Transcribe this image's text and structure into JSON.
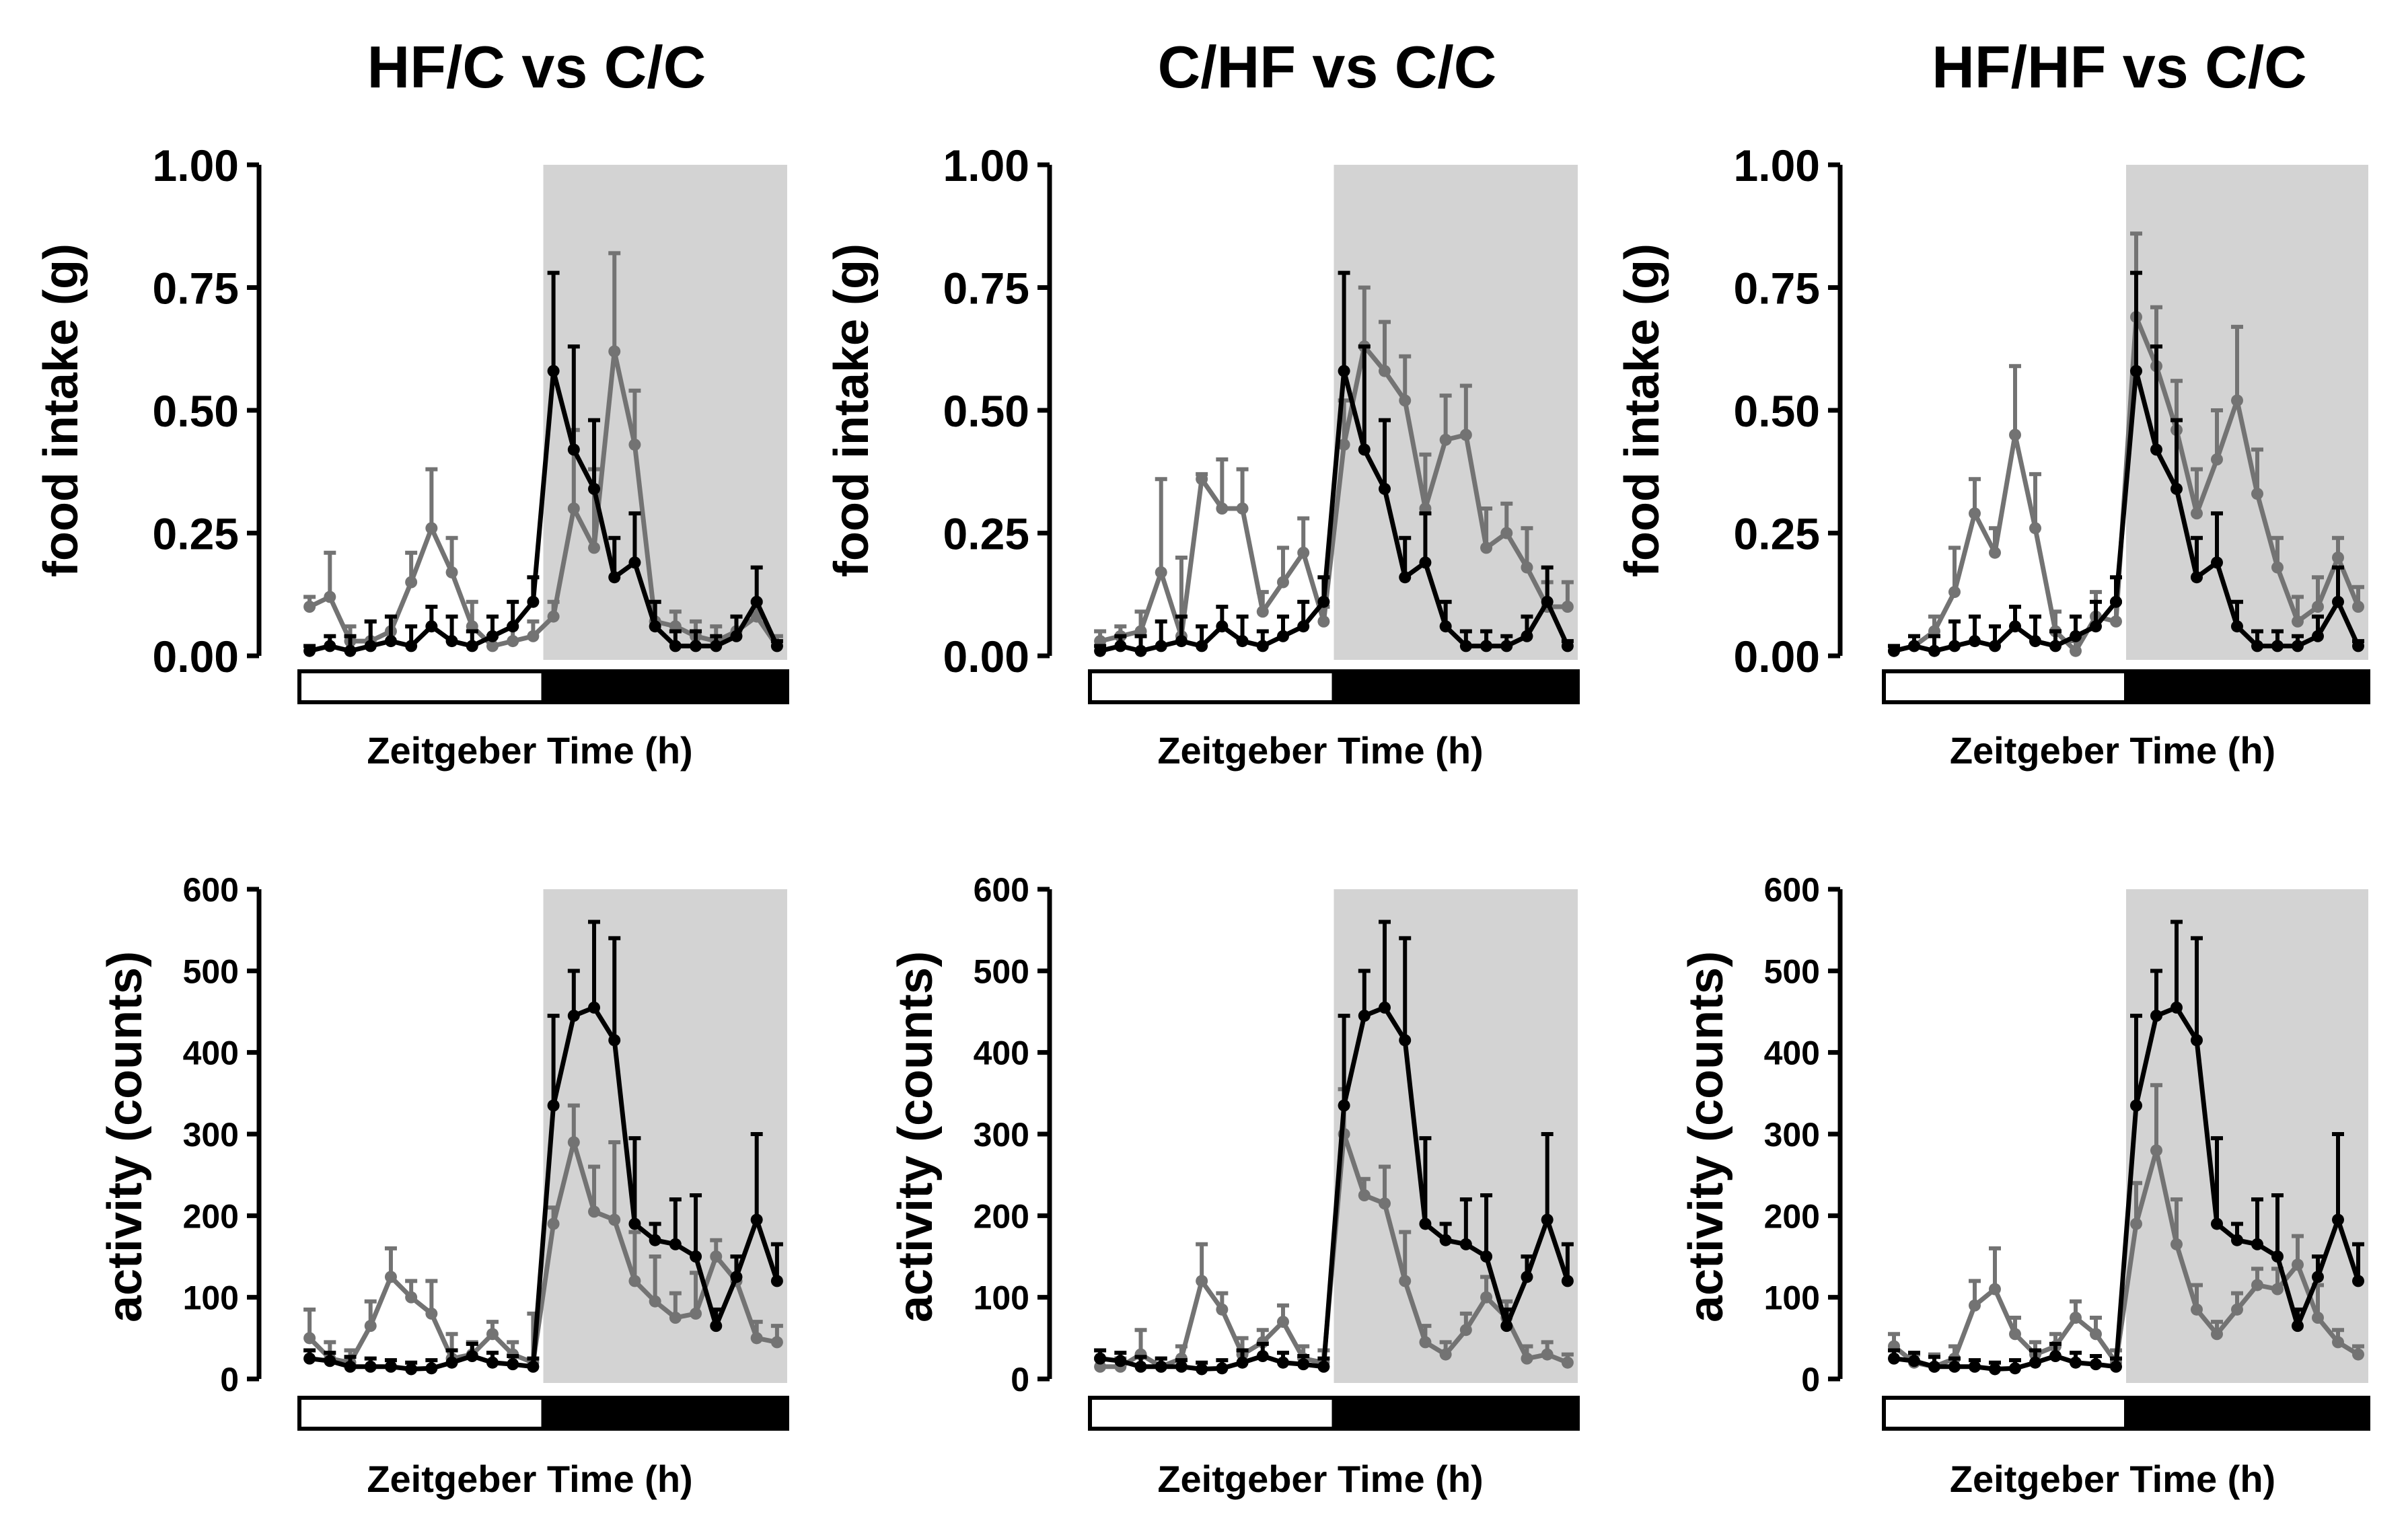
{
  "colors": {
    "control_series": "#000000",
    "treatment_series": "#737373",
    "dark_phase_shading": "#d3d3d3",
    "light_bar": "#ffffff",
    "dark_bar": "#000000"
  },
  "chart_data": [
    {
      "type": "line",
      "panel": "top-left",
      "title": "HF/C vs C/C",
      "ylabel": "food intake (g)",
      "xlabel": "Zeitgeber Time (h)",
      "ylim": [
        0,
        1.0
      ],
      "yticks": [
        "0.00",
        "0.25",
        "0.50",
        "0.75",
        "1.00"
      ],
      "x": [
        0.5,
        1.5,
        2.5,
        3.5,
        4.5,
        5.5,
        6.5,
        7.5,
        8.5,
        9.5,
        10.5,
        11.5,
        12.5,
        13.5,
        14.5,
        15.5,
        16.5,
        17.5,
        18.5,
        19.5,
        20.5,
        21.5,
        22.5,
        23.5
      ],
      "xlim": [
        0,
        24
      ],
      "dark_phase": [
        12,
        24
      ],
      "grid": false,
      "series": [
        {
          "role": "treatment",
          "values": [
            0.1,
            0.12,
            0.03,
            0.03,
            0.05,
            0.15,
            0.26,
            0.17,
            0.06,
            0.02,
            0.03,
            0.04,
            0.08,
            0.3,
            0.22,
            0.62,
            0.43,
            0.07,
            0.06,
            0.04,
            0.03,
            0.05,
            0.08,
            0.02
          ],
          "errors": [
            0.02,
            0.09,
            0.03,
            0.04,
            0.03,
            0.06,
            0.12,
            0.07,
            0.05,
            0.02,
            0.03,
            0.03,
            0.03,
            0.16,
            0.16,
            0.2,
            0.11,
            0.04,
            0.03,
            0.03,
            0.03,
            0.03,
            0.03,
            0.02
          ]
        },
        {
          "role": "control",
          "values": [
            0.01,
            0.02,
            0.01,
            0.02,
            0.03,
            0.02,
            0.06,
            0.03,
            0.02,
            0.04,
            0.06,
            0.11,
            0.58,
            0.42,
            0.34,
            0.16,
            0.19,
            0.06,
            0.02,
            0.02,
            0.02,
            0.04,
            0.11,
            0.02
          ],
          "errors": [
            0.01,
            0.02,
            0.03,
            0.05,
            0.05,
            0.04,
            0.04,
            0.05,
            0.03,
            0.04,
            0.05,
            0.05,
            0.2,
            0.21,
            0.14,
            0.08,
            0.1,
            0.05,
            0.03,
            0.03,
            0.02,
            0.04,
            0.07,
            0.01
          ]
        }
      ]
    },
    {
      "type": "line",
      "panel": "top-middle",
      "title": "C/HF vs C/C",
      "ylabel": "food intake (g)",
      "xlabel": "Zeitgeber Time (h)",
      "ylim": [
        0,
        1.0
      ],
      "yticks": [
        "0.00",
        "0.25",
        "0.50",
        "0.75",
        "1.00"
      ],
      "x": [
        0.5,
        1.5,
        2.5,
        3.5,
        4.5,
        5.5,
        6.5,
        7.5,
        8.5,
        9.5,
        10.5,
        11.5,
        12.5,
        13.5,
        14.5,
        15.5,
        16.5,
        17.5,
        18.5,
        19.5,
        20.5,
        21.5,
        22.5,
        23.5
      ],
      "xlim": [
        0,
        24
      ],
      "dark_phase": [
        12,
        24
      ],
      "grid": false,
      "series": [
        {
          "role": "treatment",
          "values": [
            0.03,
            0.04,
            0.05,
            0.17,
            0.04,
            0.36,
            0.3,
            0.3,
            0.09,
            0.15,
            0.21,
            0.07,
            0.43,
            0.63,
            0.58,
            0.52,
            0.3,
            0.44,
            0.45,
            0.22,
            0.25,
            0.18,
            0.1,
            0.1
          ],
          "errors": [
            0.02,
            0.02,
            0.04,
            0.19,
            0.16,
            0.01,
            0.1,
            0.08,
            0.04,
            0.07,
            0.07,
            0.03,
            0.09,
            0.12,
            0.1,
            0.09,
            0.11,
            0.09,
            0.1,
            0.08,
            0.06,
            0.08,
            0.05,
            0.05
          ]
        },
        {
          "role": "control",
          "values": [
            0.01,
            0.02,
            0.01,
            0.02,
            0.03,
            0.02,
            0.06,
            0.03,
            0.02,
            0.04,
            0.06,
            0.11,
            0.58,
            0.42,
            0.34,
            0.16,
            0.19,
            0.06,
            0.02,
            0.02,
            0.02,
            0.04,
            0.11,
            0.02
          ],
          "errors": [
            0.01,
            0.02,
            0.03,
            0.05,
            0.05,
            0.04,
            0.04,
            0.05,
            0.03,
            0.04,
            0.05,
            0.05,
            0.2,
            0.21,
            0.14,
            0.08,
            0.1,
            0.05,
            0.03,
            0.03,
            0.02,
            0.04,
            0.07,
            0.01
          ]
        }
      ]
    },
    {
      "type": "line",
      "panel": "top-right",
      "title": "HF/HF vs C/C",
      "ylabel": "food intake (g)",
      "xlabel": "Zeitgeber Time (h)",
      "ylim": [
        0,
        1.0
      ],
      "yticks": [
        "0.00",
        "0.25",
        "0.50",
        "0.75",
        "1.00"
      ],
      "x": [
        0.5,
        1.5,
        2.5,
        3.5,
        4.5,
        5.5,
        6.5,
        7.5,
        8.5,
        9.5,
        10.5,
        11.5,
        12.5,
        13.5,
        14.5,
        15.5,
        16.5,
        17.5,
        18.5,
        19.5,
        20.5,
        21.5,
        22.5,
        23.5
      ],
      "xlim": [
        0,
        24
      ],
      "dark_phase": [
        12,
        24
      ],
      "grid": false,
      "series": [
        {
          "role": "treatment",
          "values": [
            0.01,
            0.02,
            0.05,
            0.13,
            0.29,
            0.21,
            0.45,
            0.26,
            0.05,
            0.01,
            0.08,
            0.07,
            0.69,
            0.59,
            0.46,
            0.29,
            0.4,
            0.52,
            0.33,
            0.18,
            0.07,
            0.1,
            0.2,
            0.1
          ],
          "errors": [
            0.01,
            0.02,
            0.03,
            0.09,
            0.07,
            0.05,
            0.14,
            0.11,
            0.04,
            0.02,
            0.05,
            0.04,
            0.17,
            0.12,
            0.1,
            0.09,
            0.1,
            0.15,
            0.09,
            0.06,
            0.05,
            0.06,
            0.04,
            0.04
          ]
        },
        {
          "role": "control",
          "values": [
            0.01,
            0.02,
            0.01,
            0.02,
            0.03,
            0.02,
            0.06,
            0.03,
            0.02,
            0.04,
            0.06,
            0.11,
            0.58,
            0.42,
            0.34,
            0.16,
            0.19,
            0.06,
            0.02,
            0.02,
            0.02,
            0.04,
            0.11,
            0.02
          ],
          "errors": [
            0.01,
            0.02,
            0.03,
            0.05,
            0.05,
            0.04,
            0.04,
            0.05,
            0.03,
            0.04,
            0.05,
            0.05,
            0.2,
            0.21,
            0.14,
            0.08,
            0.1,
            0.05,
            0.03,
            0.03,
            0.02,
            0.04,
            0.07,
            0.01
          ]
        }
      ]
    },
    {
      "type": "line",
      "panel": "bottom-left",
      "title": "",
      "ylabel": "activity (counts)",
      "xlabel": "Zeitgeber Time (h)",
      "ylim": [
        0,
        600
      ],
      "yticks": [
        "0",
        "100",
        "200",
        "300",
        "400",
        "500",
        "600"
      ],
      "x": [
        0.5,
        1.5,
        2.5,
        3.5,
        4.5,
        5.5,
        6.5,
        7.5,
        8.5,
        9.5,
        10.5,
        11.5,
        12.5,
        13.5,
        14.5,
        15.5,
        16.5,
        17.5,
        18.5,
        19.5,
        20.5,
        21.5,
        22.5,
        23.5
      ],
      "xlim": [
        0,
        24
      ],
      "dark_phase": [
        12,
        24
      ],
      "grid": false,
      "series": [
        {
          "role": "treatment",
          "values": [
            50,
            25,
            20,
            65,
            125,
            100,
            80,
            25,
            30,
            55,
            30,
            20,
            190,
            290,
            205,
            195,
            120,
            95,
            75,
            80,
            150,
            120,
            50,
            45
          ],
          "errors": [
            35,
            20,
            15,
            30,
            35,
            20,
            40,
            30,
            15,
            15,
            15,
            60,
            20,
            45,
            55,
            95,
            60,
            55,
            30,
            50,
            20,
            30,
            20,
            20
          ]
        },
        {
          "role": "control",
          "values": [
            25,
            22,
            15,
            15,
            15,
            12,
            13,
            20,
            28,
            20,
            18,
            15,
            335,
            445,
            455,
            415,
            190,
            170,
            165,
            150,
            65,
            125,
            195,
            120
          ],
          "errors": [
            10,
            10,
            12,
            10,
            8,
            8,
            10,
            15,
            15,
            12,
            10,
            10,
            110,
            55,
            105,
            125,
            105,
            20,
            55,
            75,
            20,
            25,
            105,
            45
          ]
        }
      ]
    },
    {
      "type": "line",
      "panel": "bottom-middle",
      "title": "",
      "ylabel": "activity (counts)",
      "xlabel": "Zeitgeber Time (h)",
      "ylim": [
        0,
        600
      ],
      "yticks": [
        "0",
        "100",
        "200",
        "300",
        "400",
        "500",
        "600"
      ],
      "x": [
        0.5,
        1.5,
        2.5,
        3.5,
        4.5,
        5.5,
        6.5,
        7.5,
        8.5,
        9.5,
        10.5,
        11.5,
        12.5,
        13.5,
        14.5,
        15.5,
        16.5,
        17.5,
        18.5,
        19.5,
        20.5,
        21.5,
        22.5,
        23.5
      ],
      "xlim": [
        0,
        24
      ],
      "dark_phase": [
        12,
        24
      ],
      "grid": false,
      "series": [
        {
          "role": "treatment",
          "values": [
            15,
            15,
            30,
            15,
            25,
            120,
            85,
            30,
            45,
            70,
            25,
            20,
            300,
            225,
            215,
            120,
            45,
            30,
            60,
            100,
            75,
            25,
            30,
            20
          ],
          "errors": [
            10,
            10,
            30,
            10,
            15,
            45,
            20,
            20,
            15,
            20,
            15,
            15,
            55,
            20,
            45,
            60,
            20,
            15,
            20,
            25,
            20,
            15,
            15,
            10
          ]
        },
        {
          "role": "control",
          "values": [
            25,
            22,
            15,
            15,
            15,
            12,
            13,
            20,
            28,
            20,
            18,
            15,
            335,
            445,
            455,
            415,
            190,
            170,
            165,
            150,
            65,
            125,
            195,
            120
          ],
          "errors": [
            10,
            10,
            12,
            10,
            8,
            8,
            10,
            15,
            15,
            12,
            10,
            10,
            110,
            55,
            105,
            125,
            105,
            20,
            55,
            75,
            20,
            25,
            105,
            45
          ]
        }
      ]
    },
    {
      "type": "line",
      "panel": "bottom-right",
      "title": "",
      "ylabel": "activity (counts)",
      "xlabel": "Zeitgeber Time (h)",
      "ylim": [
        0,
        600
      ],
      "yticks": [
        "0",
        "100",
        "200",
        "300",
        "400",
        "500",
        "600"
      ],
      "x": [
        0.5,
        1.5,
        2.5,
        3.5,
        4.5,
        5.5,
        6.5,
        7.5,
        8.5,
        9.5,
        10.5,
        11.5,
        12.5,
        13.5,
        14.5,
        15.5,
        16.5,
        17.5,
        18.5,
        19.5,
        20.5,
        21.5,
        22.5,
        23.5
      ],
      "xlim": [
        0,
        24
      ],
      "dark_phase": [
        12,
        24
      ],
      "grid": false,
      "series": [
        {
          "role": "treatment",
          "values": [
            40,
            20,
            15,
            25,
            90,
            110,
            55,
            30,
            40,
            75,
            55,
            20,
            190,
            280,
            165,
            85,
            55,
            85,
            115,
            110,
            140,
            75,
            45,
            30
          ],
          "errors": [
            15,
            10,
            15,
            15,
            30,
            50,
            20,
            15,
            15,
            20,
            20,
            15,
            50,
            80,
            55,
            30,
            15,
            20,
            20,
            25,
            35,
            40,
            15,
            10
          ]
        },
        {
          "role": "control",
          "values": [
            25,
            22,
            15,
            15,
            15,
            12,
            13,
            20,
            28,
            20,
            18,
            15,
            335,
            445,
            455,
            415,
            190,
            170,
            165,
            150,
            65,
            125,
            195,
            120
          ],
          "errors": [
            10,
            10,
            12,
            10,
            8,
            8,
            10,
            15,
            15,
            12,
            10,
            10,
            110,
            55,
            105,
            125,
            105,
            20,
            55,
            75,
            20,
            25,
            105,
            45
          ]
        }
      ]
    }
  ]
}
